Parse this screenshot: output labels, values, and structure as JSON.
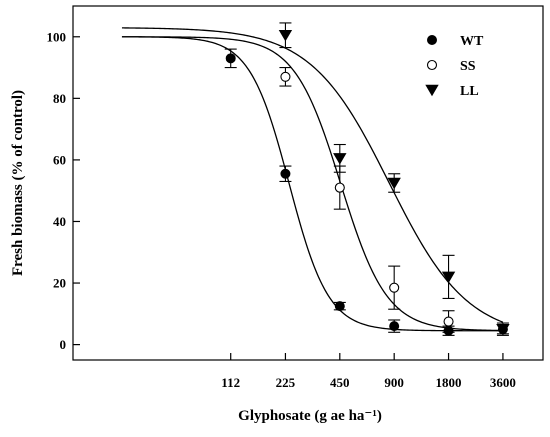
{
  "chart_data": {
    "type": "scatter",
    "title": "",
    "xlabel": "Glyphosate (g ae ha⁻¹)",
    "ylabel": "Fresh biomass (% of control)",
    "x_scale": "log",
    "xlim": [
      15,
      6000
    ],
    "ylim": [
      -5,
      110
    ],
    "x_ticks": [
      112,
      225,
      450,
      900,
      1800,
      3600
    ],
    "y_ticks": [
      0,
      20,
      40,
      60,
      80,
      100
    ],
    "legend_position": "top-right",
    "series": [
      {
        "name": "WT",
        "marker": "filled-circle",
        "x": [
          112,
          225,
          450,
          900,
          1800,
          3600
        ],
        "y": [
          93,
          55.5,
          12.5,
          6,
          4.5,
          5
        ],
        "err": [
          3,
          2.5,
          1.2,
          2,
          1.5,
          1.5
        ],
        "fit": {
          "top": 100,
          "bottom": 4.5,
          "ed50": 236,
          "slope": 4.0
        }
      },
      {
        "name": "SS",
        "marker": "open-circle",
        "x": [
          225,
          450,
          900,
          1800
        ],
        "y": [
          87,
          51,
          18.5,
          7.5
        ],
        "err": [
          3,
          7,
          7,
          3.5
        ],
        "fit": {
          "top": 100,
          "bottom": 4.5,
          "ed50": 455,
          "slope": 3.4
        }
      },
      {
        "name": "LL",
        "marker": "filled-triangle-down",
        "x": [
          225,
          450,
          900,
          1800,
          3600
        ],
        "y": [
          100.5,
          60.5,
          52.5,
          22,
          5
        ],
        "err": [
          4,
          4.5,
          3,
          7,
          2
        ],
        "fit": {
          "top": 103,
          "bottom": 2,
          "ed50": 845,
          "slope": 2.0
        }
      }
    ]
  }
}
